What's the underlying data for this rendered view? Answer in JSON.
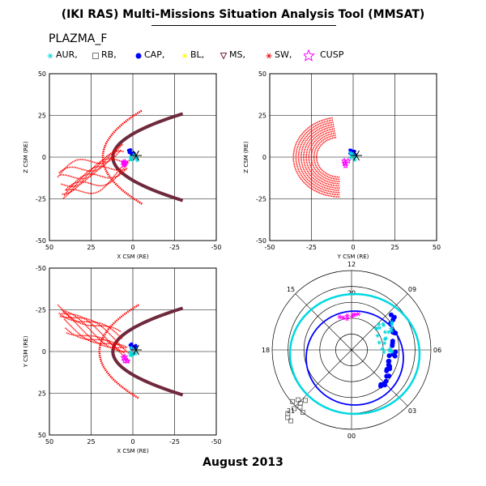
{
  "header": {
    "title": "(IKI RAS) Multi-Missions Situation Analysis Tool (MMSAT)",
    "subtitle": "PLAZMA_F",
    "footer": "August 2013"
  },
  "legend": [
    {
      "key": "aur",
      "label": "AUR,",
      "marker": "asterisk",
      "color": "#00d8e0"
    },
    {
      "key": "rb",
      "label": "RB,",
      "marker": "square",
      "color": "#555555"
    },
    {
      "key": "cap",
      "label": "CAP,",
      "marker": "dot",
      "color": "#0000ff"
    },
    {
      "key": "bl",
      "label": "BL,",
      "marker": "asterisk",
      "color": "#ffff00"
    },
    {
      "key": "ms",
      "label": "MS,",
      "marker": "triangle-down",
      "color": "#80203a"
    },
    {
      "key": "sw",
      "label": "SW,",
      "marker": "asterisk",
      "color": "#ff0000"
    },
    {
      "key": "cusp",
      "label": "CUSP",
      "marker": "star",
      "color": "#ff00ff"
    }
  ],
  "chart_data": [
    {
      "type": "scatter",
      "panel": "xz",
      "xlabel": "X CSM (RE)",
      "ylabel": "Z CSM (RE)",
      "xlim": [
        50,
        -50
      ],
      "ylim": [
        -50,
        50
      ],
      "xticks": [
        50,
        25,
        0,
        -25,
        -50
      ],
      "yticks": [
        -50,
        -25,
        0,
        25,
        50
      ],
      "grid": true
    },
    {
      "type": "scatter",
      "panel": "yz",
      "xlabel": "Y CSM (RE)",
      "ylabel": "Z CSM (RE)",
      "xlim": [
        -50,
        50
      ],
      "ylim": [
        -50,
        50
      ],
      "xticks": [
        -50,
        -25,
        0,
        25,
        50
      ],
      "yticks": [
        -50,
        -25,
        0,
        25,
        50
      ],
      "grid": true
    },
    {
      "type": "scatter",
      "panel": "xy",
      "xlabel": "X CSM (RE)",
      "ylabel": "Y CSM (RE)",
      "xlim": [
        50,
        -50
      ],
      "ylim": [
        50,
        -50
      ],
      "xticks": [
        50,
        25,
        0,
        -25,
        -50
      ],
      "yticks": [
        -50,
        -25,
        0,
        25,
        50
      ],
      "grid": true
    },
    {
      "type": "polar",
      "panel": "mlt-invlat",
      "mlt_labels": [
        "12",
        "09",
        "06",
        "03",
        "00",
        "21",
        "18",
        "15"
      ],
      "ring_labels": [
        "20"
      ],
      "grid": true
    }
  ]
}
